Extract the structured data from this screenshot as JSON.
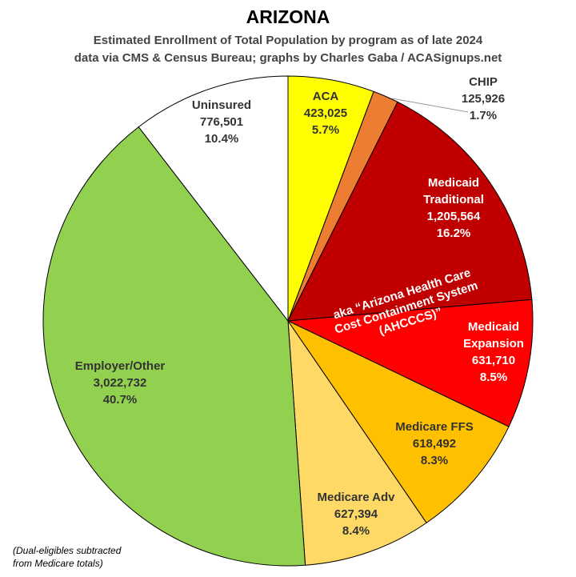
{
  "chart_data": {
    "type": "pie",
    "title": "ARIZONA",
    "subtitle_lines": [
      "Estimated Enrollment of Total Population by program as of late 2024",
      "data via CMS & Census Bureau; graphs by Charles Gaba / ACASignups.net"
    ],
    "slices": [
      {
        "name": "ACA",
        "value": 423025,
        "value_label": "423,025",
        "percent_label": "5.7%",
        "color": "#ffff00",
        "label_color": "#333333"
      },
      {
        "name": "CHIP",
        "value": 125926,
        "value_label": "125,926",
        "percent_label": "1.7%",
        "color": "#ed7d31",
        "label_color": "#333333"
      },
      {
        "name": "Medicaid Traditional",
        "value": 1205564,
        "value_label": "1,205,564",
        "percent_label": "16.2%",
        "color": "#c00000",
        "label_color": "#ffffff"
      },
      {
        "name": "Medicaid Expansion",
        "value": 631710,
        "value_label": "631,710",
        "percent_label": "8.5%",
        "color": "#ff0000",
        "label_color": "#ffffff"
      },
      {
        "name": "Medicare FFS",
        "value": 618492,
        "value_label": "618,492",
        "percent_label": "8.3%",
        "color": "#ffc000",
        "label_color": "#333333"
      },
      {
        "name": "Medicare Adv",
        "value": 627394,
        "value_label": "627,394",
        "percent_label": "8.4%",
        "color": "#ffd966",
        "label_color": "#333333"
      },
      {
        "name": "Employer/Other",
        "value": 3022732,
        "value_label": "3,022,732",
        "percent_label": "40.7%",
        "color": "#92d050",
        "label_color": "#333333"
      },
      {
        "name": "Uninsured",
        "value": 776501,
        "value_label": "776,501",
        "percent_label": "10.4%",
        "color": "#ffffff",
        "label_color": "#333333"
      }
    ],
    "annotation_lines": [
      "aka “Arizona Health Care",
      "Cost Containment System",
      "(AHCCCS)”"
    ],
    "footnote_lines": [
      "(Dual-eligibles subtracted",
      "from Medicare totals)"
    ]
  }
}
